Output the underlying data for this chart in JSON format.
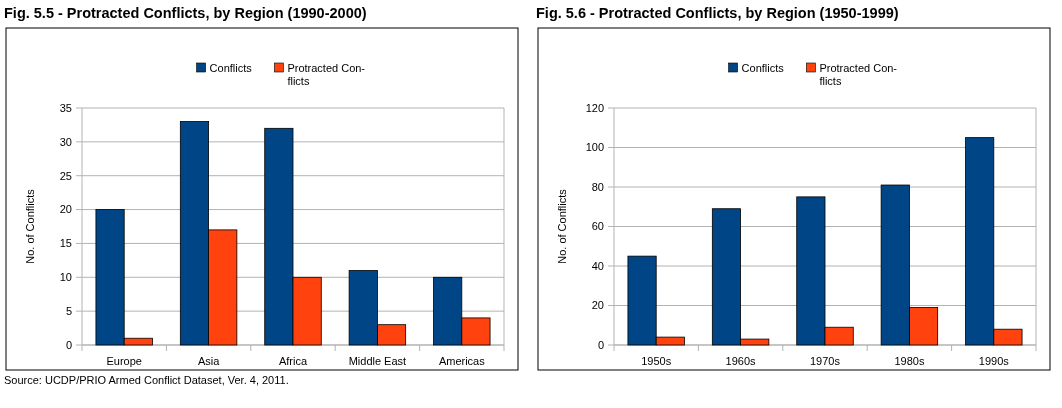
{
  "chart_data": [
    {
      "type": "bar",
      "title": "Fig. 5.5 - Protracted Conflicts, by Region (1990-2000)",
      "ylabel": "No. of Conflicts",
      "categories": [
        "Europe",
        "Asia",
        "Africa",
        "Middle East",
        "Americas"
      ],
      "series": [
        {
          "name": "Conflicts",
          "color": "#004586",
          "values": [
            20,
            33,
            32,
            11,
            10
          ]
        },
        {
          "name": "Protracted Con-flicts",
          "color": "#ff420e",
          "values": [
            1,
            17,
            10,
            3,
            4
          ]
        }
      ],
      "ylim": [
        0,
        35
      ],
      "yticks": [
        0,
        5,
        10,
        15,
        20,
        25,
        30,
        35
      ],
      "grid": "y",
      "legend": "top",
      "annotations": [
        "Source: UCDP/PRIO Armed Conflict Dataset, Ver. 4, 2011."
      ]
    },
    {
      "type": "bar",
      "title": "Fig. 5.6 - Protracted Conflicts, by Region (1950-1999)",
      "ylabel": "No. of Conflicts",
      "categories": [
        "1950s",
        "1960s",
        "1970s",
        "1980s",
        "1990s"
      ],
      "series": [
        {
          "name": "Conflicts",
          "color": "#004586",
          "values": [
            45,
            69,
            75,
            81,
            105
          ]
        },
        {
          "name": "Protracted Con-flicts",
          "color": "#ff420e",
          "values": [
            4,
            3,
            9,
            19,
            8
          ]
        }
      ],
      "ylim": [
        0,
        120
      ],
      "yticks": [
        0,
        20,
        40,
        60,
        80,
        100,
        120
      ],
      "grid": "y",
      "legend": "top"
    }
  ]
}
